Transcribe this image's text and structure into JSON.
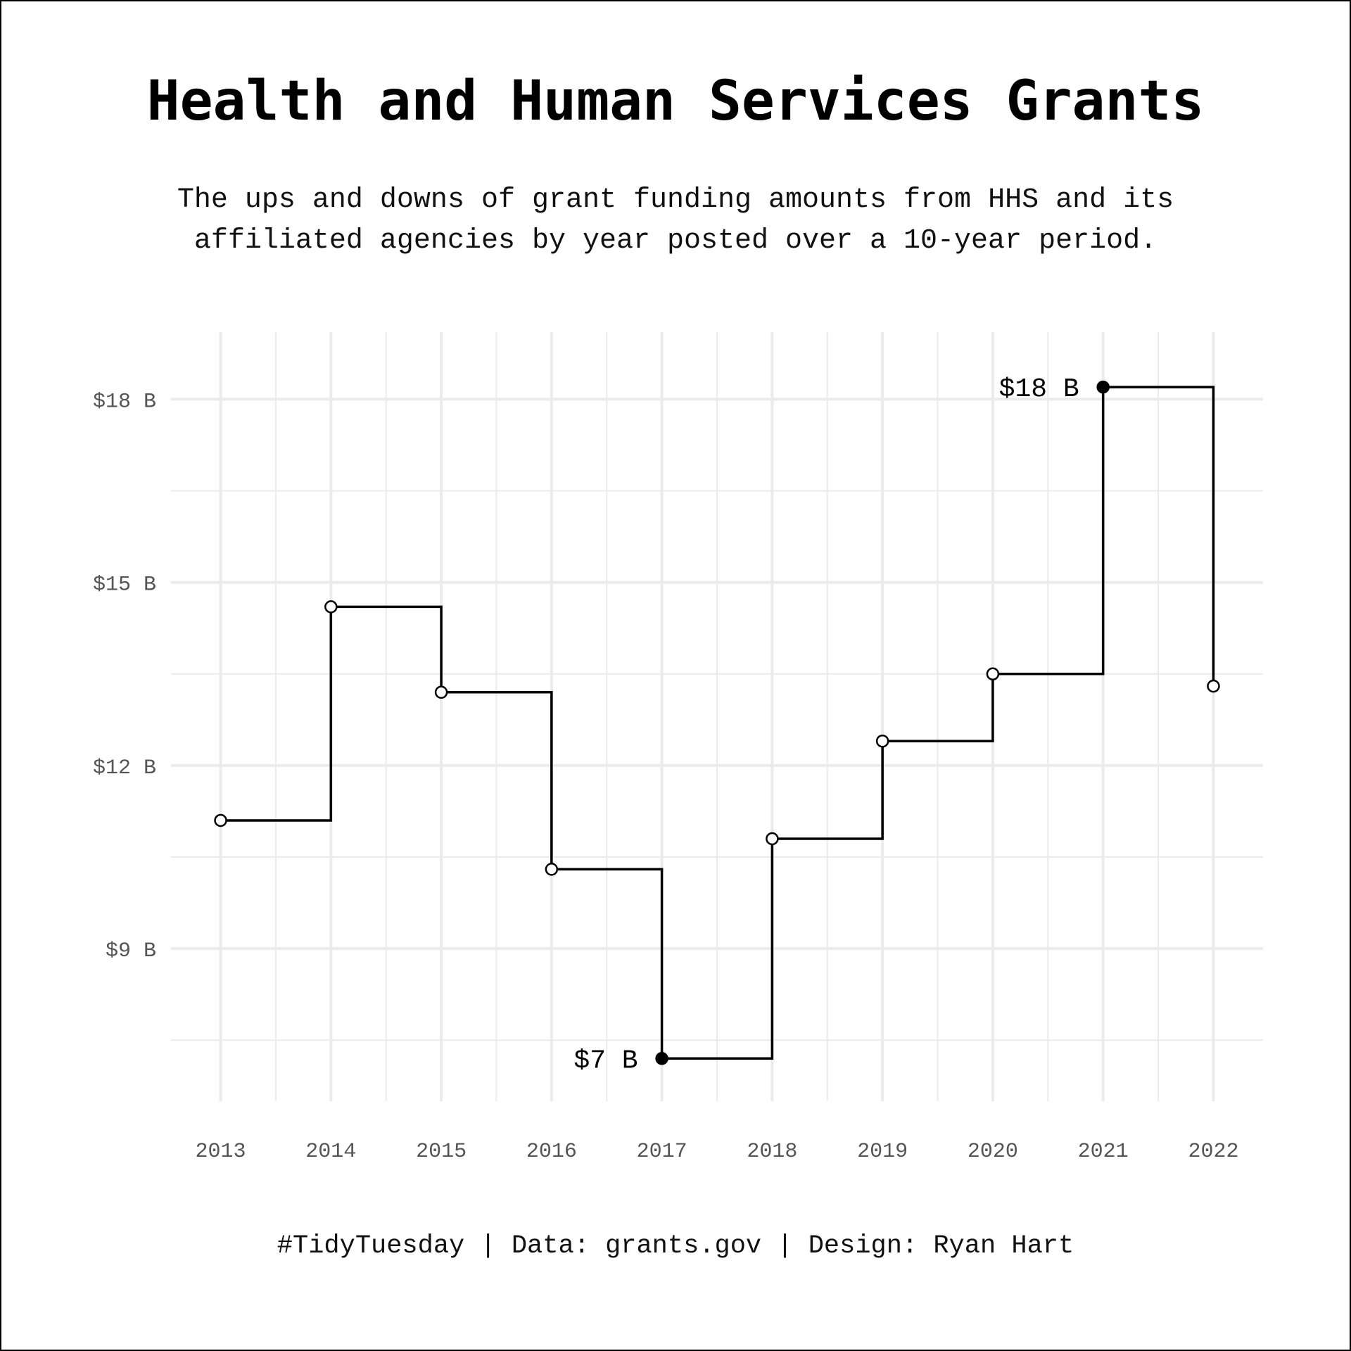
{
  "title": "Health and Human Services Grants",
  "subtitle": [
    "The ups and downs of grant funding amounts from HHS and its",
    "affiliated agencies by year posted over a 10-year period."
  ],
  "caption": "#TidyTuesday | Data: grants.gov | Design: Ryan Hart",
  "chart_data": {
    "type": "line",
    "step": "post",
    "x": [
      2013,
      2014,
      2015,
      2016,
      2017,
      2018,
      2019,
      2020,
      2021,
      2022
    ],
    "y": [
      11.1,
      14.6,
      13.2,
      10.3,
      7.2,
      10.8,
      12.4,
      13.5,
      18.2,
      13.3
    ],
    "y_unit": "$ billions",
    "xlim": [
      2012.55,
      2022.45
    ],
    "ylim": [
      6.5,
      19.1
    ],
    "x_ticks": [
      "2013",
      "2014",
      "2015",
      "2016",
      "2017",
      "2018",
      "2019",
      "2020",
      "2021",
      "2022"
    ],
    "y_ticks": [
      {
        "value": 9,
        "label": "$9 B"
      },
      {
        "value": 12,
        "label": "$12 B"
      },
      {
        "value": 15,
        "label": "$15 B"
      },
      {
        "value": 18,
        "label": "$18 B"
      }
    ],
    "annotations": [
      {
        "x": 2017,
        "y": 7.2,
        "label": "$7 B"
      },
      {
        "x": 2021,
        "y": 18.2,
        "label": "$18 B"
      }
    ],
    "highlighted_points": [
      2017,
      2021
    ],
    "grid": true,
    "line_color": "#000000",
    "grid_color": "#ebebeb",
    "point_fill": "#ffffff"
  }
}
